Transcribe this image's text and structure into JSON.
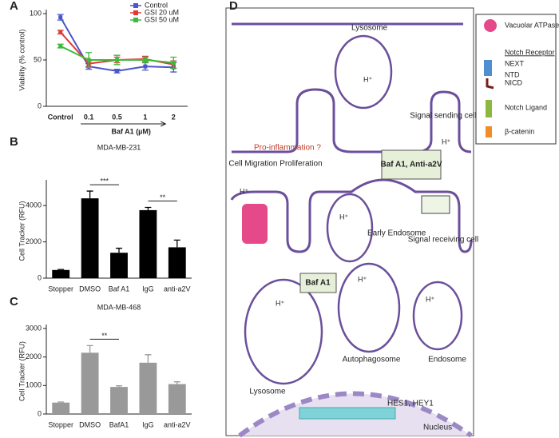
{
  "chart_data": [
    {
      "type": "line",
      "panel": "A",
      "y_label": "Viability (% control)",
      "x_label": "Baf A1 (µM)",
      "categories": [
        "Control",
        "0.1",
        "0.5",
        "1",
        "2"
      ],
      "series": [
        {
          "name": "Control",
          "color": "#4a56c9",
          "values": [
            96,
            43,
            38,
            43,
            42
          ],
          "errors": [
            3,
            3,
            2,
            4,
            5
          ]
        },
        {
          "name": "GSI 20 uM",
          "color": "#e03a3a",
          "values": [
            80,
            46,
            50,
            51,
            45
          ],
          "errors": [
            2,
            3,
            3,
            3,
            4
          ]
        },
        {
          "name": "GSI 50 uM",
          "color": "#3cba3c",
          "values": [
            65,
            50,
            50,
            50,
            47
          ],
          "errors": [
            2,
            8,
            5,
            3,
            6
          ]
        }
      ],
      "ylim": [
        0,
        100
      ],
      "yticks": [
        0,
        50,
        100
      ],
      "legend": "upper right"
    },
    {
      "type": "bar",
      "panel": "B",
      "title": "MDA-MB-231",
      "y_label": "Cell Tracker (RFU)",
      "categories": [
        "Stopper",
        "DMSO",
        "Baf A1",
        "IgG",
        "anti-a2V"
      ],
      "values": [
        450,
        4400,
        1400,
        3750,
        1700
      ],
      "errors": [
        30,
        400,
        250,
        150,
        400
      ],
      "color": "#000000",
      "ylim": [
        0,
        5200
      ],
      "yticks": [
        0,
        2000,
        4000
      ],
      "significance": [
        {
          "between": [
            1,
            2
          ],
          "label": "***"
        },
        {
          "between": [
            3,
            4
          ],
          "label": "**"
        }
      ]
    },
    {
      "type": "bar",
      "panel": "C",
      "title": "MDA-MB-468",
      "y_label": "Cell Tracker (RFU)",
      "categories": [
        "Stopper",
        "DMSO",
        "BafA1",
        "IgG",
        "anti-a2V"
      ],
      "values": [
        400,
        2150,
        950,
        1800,
        1050
      ],
      "errors": [
        20,
        250,
        40,
        280,
        80
      ],
      "color": "#999999",
      "ylim": [
        0,
        3000
      ],
      "yticks": [
        0,
        1000,
        2000,
        3000
      ],
      "significance": [
        {
          "between": [
            1,
            2
          ],
          "label": "**"
        }
      ]
    }
  ],
  "diagram": {
    "panel": "D",
    "lysosome_top": "Lysosome",
    "sending_cell": "Signal sending cell",
    "pro_inflammation": "Pro-inflammation ?",
    "migration": "Cell Migration Proliferation",
    "inhibitor_1": "Baf A1, Anti-a2V",
    "receiving_cell": "Signal receiving cell",
    "early_endosome": "Early Endosome",
    "inhibitor_2": "Baf A1",
    "autophagosome": "Autophagosome",
    "lysosome_bottom": "Lysosome",
    "endosome": "Endosome",
    "genes": "HES1, HEY1",
    "nucleus": "Nucleus",
    "protons": [
      "H⁺",
      "H⁺",
      "H⁺",
      "H⁺",
      "H⁺",
      "H⁺",
      "H⁺"
    ],
    "legend": {
      "atpase": "Vacuolar ATPase",
      "receptor": "Notch Receptor",
      "next": "NEXT",
      "ntd": "NTD",
      "nicd": "NICD",
      "ligand": "Notch Ligand",
      "catenin": "β-catenin"
    }
  }
}
